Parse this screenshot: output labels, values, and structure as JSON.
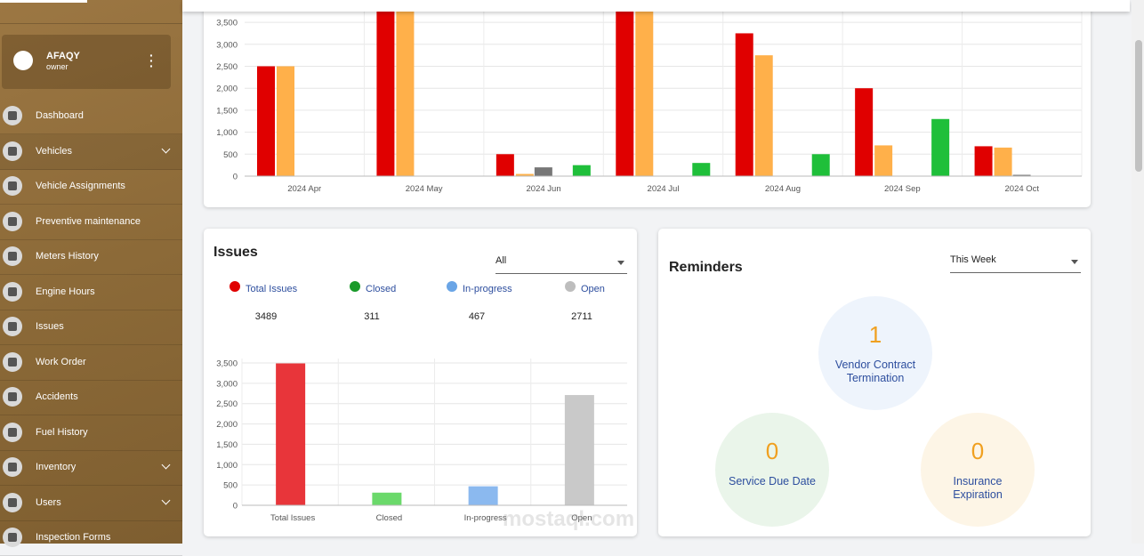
{
  "sidebar": {
    "user": {
      "name": "AFAQY",
      "role": "owner"
    },
    "menu": [
      {
        "label": "Dashboard",
        "expandable": false
      },
      {
        "label": "Vehicles",
        "expandable": true
      },
      {
        "label": "Vehicle Assignments",
        "expandable": false
      },
      {
        "label": "Preventive maintenance",
        "expandable": false
      },
      {
        "label": "Meters History",
        "expandable": false
      },
      {
        "label": "Engine Hours",
        "expandable": false
      },
      {
        "label": "Issues",
        "expandable": false
      },
      {
        "label": "Work Order",
        "expandable": false
      },
      {
        "label": "Accidents",
        "expandable": false
      },
      {
        "label": "Fuel History",
        "expandable": false
      },
      {
        "label": "Inventory",
        "expandable": true
      },
      {
        "label": "Users",
        "expandable": true
      },
      {
        "label": "Inspection Forms",
        "expandable": false
      }
    ]
  },
  "issues": {
    "title": "Issues",
    "filter": "All"
  },
  "reminders": {
    "title": "Reminders",
    "filter": "This Week",
    "items": [
      {
        "count": 1,
        "label": "Vendor Contract Termination",
        "background": "#eef4fc"
      },
      {
        "count": 0,
        "label": "Service Due Date",
        "background": "#eaf5ea"
      },
      {
        "count": 0,
        "label": "Insurance Expiration",
        "background": "#fdf5e6"
      }
    ]
  },
  "watermark": "mostaql.com",
  "chart_data": [
    {
      "type": "bar",
      "categories": [
        "2024 Apr",
        "2024 May",
        "2024 Jun",
        "2024 Jul",
        "2024 Aug",
        "2024 Sep",
        "2024 Oct"
      ],
      "series": [
        {
          "color": "#e00000",
          "values": [
            2500,
            3800,
            500,
            3800,
            3250,
            2000,
            680
          ]
        },
        {
          "color": "#ffb04a",
          "values": [
            2500,
            3800,
            50,
            3800,
            2750,
            700,
            650
          ]
        },
        {
          "color": "#777777",
          "values": [
            0,
            0,
            200,
            0,
            0,
            0,
            30
          ]
        },
        {
          "color": "#1fbf3a",
          "values": [
            0,
            0,
            250,
            300,
            500,
            1300,
            0
          ]
        }
      ],
      "ylim": [
        0,
        4000
      ],
      "yticks": [
        0,
        500,
        {
          "value": 1000,
          "label": "1,000"
        },
        {
          "value": 1500,
          "label": "1,500"
        },
        {
          "value": 2000,
          "label": "2,000"
        },
        {
          "value": 2500,
          "label": "2,500"
        },
        {
          "value": 3000,
          "label": "3,000"
        },
        {
          "value": 3500,
          "label": "3,500"
        }
      ],
      "grid": true
    },
    {
      "type": "bar",
      "categories": [
        "Total Issues",
        "Closed",
        "In-progress",
        "Open"
      ],
      "values": [
        3489,
        311,
        467,
        2711
      ],
      "colors": [
        "#e8353a",
        "#6bd96b",
        "#8bb9ef",
        "#c9c9c9"
      ],
      "legend_colors": [
        "#e00000",
        "#1a9a2a",
        "#6aa5e6",
        "#bdbdbd"
      ],
      "ylim": [
        0,
        3500
      ],
      "yticks": [
        0,
        500,
        {
          "value": 1000,
          "label": "1,000"
        },
        {
          "value": 1500,
          "label": "1,500"
        },
        {
          "value": 2000,
          "label": "2,000"
        },
        {
          "value": 2500,
          "label": "2,500"
        },
        {
          "value": 3000,
          "label": "3,000"
        },
        {
          "value": 3500,
          "label": "3,500"
        }
      ],
      "grid": true
    }
  ]
}
